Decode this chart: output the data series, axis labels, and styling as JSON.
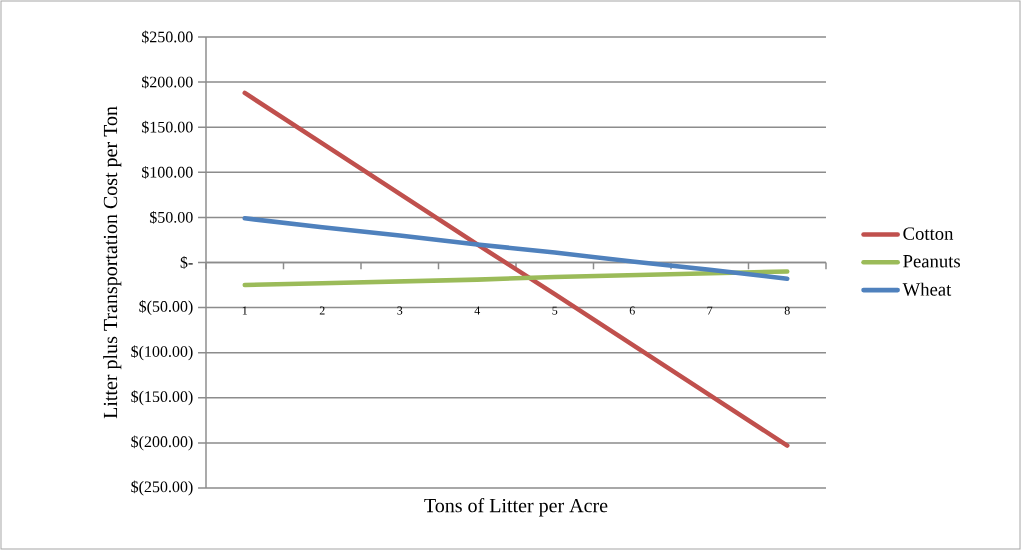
{
  "chart_data": {
    "type": "line",
    "xlabel": "Tons of Litter per Acre",
    "ylabel": "Litter plus Transportation Cost per Ton",
    "categories": [
      "1",
      "2",
      "3",
      "4",
      "5",
      "6",
      "7",
      "8"
    ],
    "series": [
      {
        "name": "Cotton",
        "color": "#c0504d",
        "values": [
          188,
          132,
          76,
          20,
          -35,
          -91,
          -147,
          -203
        ]
      },
      {
        "name": "Peanuts",
        "color": "#9bbb59",
        "values": [
          -25,
          -23,
          -21,
          -19,
          -16,
          -14,
          -12,
          -10
        ]
      },
      {
        "name": "Wheat",
        "color": "#4f81bd",
        "values": [
          49,
          39,
          30,
          20,
          11,
          1,
          -8,
          -18
        ]
      }
    ],
    "ylim": [
      -250,
      250
    ],
    "yticks": [
      {
        "value": 250,
        "label": "$250.00"
      },
      {
        "value": 200,
        "label": "$200.00"
      },
      {
        "value": 150,
        "label": "$150.00"
      },
      {
        "value": 100,
        "label": "$100.00"
      },
      {
        "value": 50,
        "label": "$50.00"
      },
      {
        "value": 0,
        "label": "$-"
      },
      {
        "value": -50,
        "label": "$(50.00)"
      },
      {
        "value": -100,
        "label": "$(100.00)"
      },
      {
        "value": -150,
        "label": "$(150.00)"
      },
      {
        "value": -200,
        "label": "$(200.00)"
      },
      {
        "value": -250,
        "label": "$(250.00)"
      }
    ],
    "grid": "y",
    "legend": "right",
    "marker": "none",
    "line_style": "solid"
  }
}
